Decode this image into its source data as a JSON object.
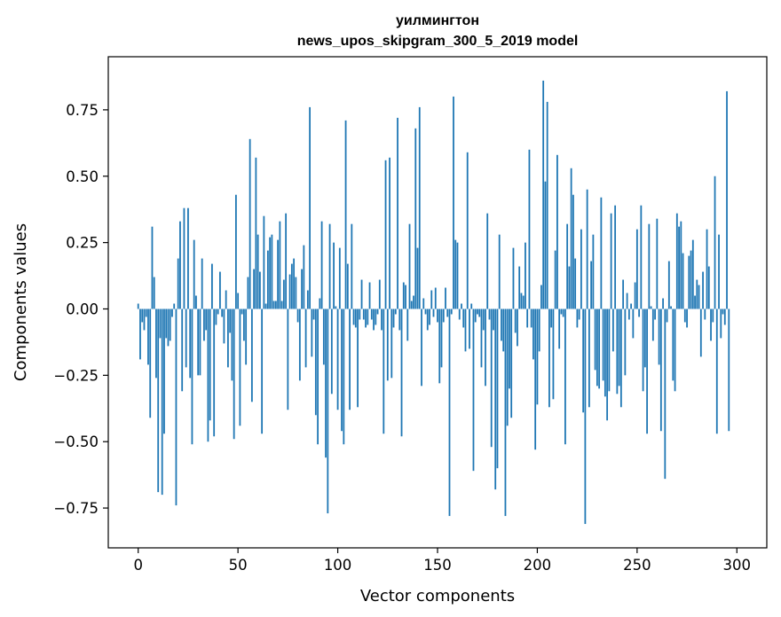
{
  "chart_data": {
    "type": "bar",
    "title": "уилмингтон",
    "subtitle": "news_upos_skipgram_300_5_2019 model",
    "xlabel": "Vector components",
    "ylabel": "Components values",
    "xlim": [
      -15,
      315
    ],
    "ylim": [
      -0.9,
      0.95
    ],
    "xticks": [
      0,
      50,
      100,
      150,
      200,
      250,
      300
    ],
    "xtick_labels": [
      "0",
      "50",
      "100",
      "150",
      "200",
      "250",
      "300"
    ],
    "yticks": [
      -0.75,
      -0.5,
      -0.25,
      0.0,
      0.25,
      0.5,
      0.75
    ],
    "ytick_labels": [
      "−0.75",
      "−0.50",
      "−0.25",
      "0.00",
      "0.25",
      "0.50",
      "0.75"
    ],
    "bar_color": "#1f77b4",
    "grid": false,
    "values": [
      0.02,
      -0.19,
      -0.05,
      -0.08,
      -0.03,
      -0.21,
      -0.41,
      0.31,
      0.12,
      -0.26,
      -0.69,
      -0.11,
      -0.7,
      -0.47,
      -0.11,
      -0.14,
      -0.12,
      -0.03,
      0.02,
      -0.74,
      0.19,
      0.33,
      -0.31,
      0.38,
      -0.22,
      0.38,
      -0.26,
      -0.51,
      0.26,
      0.05,
      -0.25,
      -0.25,
      0.19,
      -0.12,
      -0.08,
      -0.5,
      -0.42,
      0.17,
      -0.48,
      -0.06,
      -0.02,
      0.14,
      -0.03,
      -0.13,
      0.07,
      -0.22,
      -0.09,
      -0.27,
      -0.49,
      0.43,
      0.06,
      -0.44,
      -0.02,
      -0.12,
      -0.21,
      0.12,
      0.64,
      -0.35,
      0.15,
      0.57,
      0.28,
      0.14,
      -0.47,
      0.35,
      0.02,
      0.22,
      0.27,
      0.28,
      0.03,
      0.03,
      0.26,
      0.33,
      0.03,
      0.11,
      0.36,
      -0.38,
      0.13,
      0.17,
      0.19,
      0.12,
      -0.05,
      -0.27,
      0.15,
      0.24,
      -0.22,
      0.07,
      0.76,
      -0.18,
      -0.04,
      -0.4,
      -0.51,
      0.04,
      0.33,
      -0.21,
      -0.56,
      -0.77,
      0.32,
      -0.32,
      0.25,
      0.01,
      -0.38,
      0.23,
      -0.46,
      -0.51,
      0.71,
      0.17,
      -0.38,
      0.32,
      -0.06,
      -0.07,
      -0.37,
      -0.04,
      0.11,
      -0.04,
      -0.07,
      -0.06,
      0.1,
      -0.04,
      -0.08,
      -0.06,
      -0.02,
      0.11,
      -0.08,
      -0.47,
      0.56,
      -0.27,
      0.57,
      -0.26,
      -0.07,
      -0.02,
      0.72,
      -0.08,
      -0.48,
      0.1,
      0.09,
      -0.12,
      0.32,
      0.03,
      0.05,
      0.68,
      0.23,
      0.76,
      -0.29,
      0.04,
      -0.02,
      -0.08,
      -0.06,
      0.07,
      -0.03,
      0.08,
      -0.05,
      -0.28,
      -0.22,
      -0.05,
      0.08,
      -0.03,
      -0.78,
      -0.02,
      0.8,
      0.26,
      0.25,
      -0.04,
      0.02,
      -0.07,
      -0.16,
      0.59,
      -0.15,
      0.02,
      -0.61,
      -0.05,
      -0.02,
      -0.03,
      -0.22,
      -0.08,
      -0.29,
      0.36,
      -0.04,
      -0.52,
      -0.08,
      -0.68,
      -0.6,
      0.28,
      -0.12,
      -0.16,
      -0.78,
      -0.44,
      -0.3,
      -0.41,
      0.23,
      -0.09,
      -0.14,
      0.16,
      0.06,
      0.05,
      0.25,
      -0.07,
      0.6,
      -0.07,
      -0.19,
      -0.53,
      -0.36,
      -0.16,
      0.09,
      0.86,
      0.48,
      0.78,
      -0.37,
      -0.07,
      -0.34,
      0.22,
      0.58,
      -0.15,
      -0.02,
      -0.03,
      -0.51,
      0.32,
      0.16,
      0.53,
      0.43,
      0.19,
      -0.07,
      -0.04,
      0.3,
      -0.39,
      -0.81,
      0.45,
      -0.37,
      0.18,
      0.28,
      -0.23,
      -0.29,
      -0.3,
      0.42,
      -0.27,
      -0.33,
      -0.42,
      -0.31,
      0.36,
      -0.16,
      0.39,
      -0.32,
      -0.29,
      -0.37,
      0.11,
      -0.25,
      0.06,
      -0.04,
      0.02,
      -0.11,
      0.1,
      0.3,
      -0.03,
      0.39,
      -0.31,
      -0.22,
      -0.47,
      0.32,
      0.01,
      -0.12,
      -0.04,
      0.34,
      -0.21,
      -0.46,
      0.04,
      -0.64,
      -0.05,
      0.18,
      0.01,
      -0.27,
      -0.31,
      0.36,
      0.31,
      0.33,
      0.21,
      -0.05,
      -0.07,
      0.2,
      0.22,
      0.26,
      0.05,
      0.11,
      0.09,
      -0.18,
      0.14,
      -0.04,
      0.3,
      0.16,
      -0.12,
      -0.05,
      0.5,
      -0.47,
      0.28,
      -0.11,
      -0.02,
      -0.06,
      0.82,
      -0.46
    ]
  }
}
